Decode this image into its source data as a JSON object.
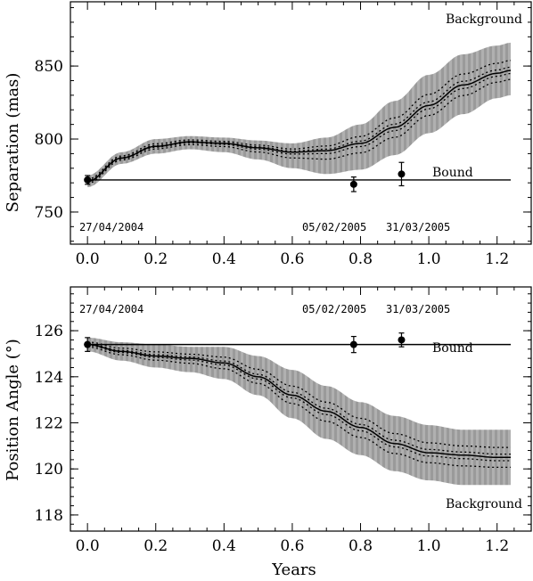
{
  "chart_data": [
    {
      "type": "line",
      "panel": "top",
      "ylabel": "Separation (mas)",
      "xlabel": "",
      "xlim": [
        -0.05,
        1.3
      ],
      "ylim": [
        728,
        894
      ],
      "xticks": [
        0.0,
        0.2,
        0.4,
        0.6,
        0.8,
        1.0,
        1.2
      ],
      "xtick_labels": [
        "0.0",
        "0.2",
        "0.4",
        "0.6",
        "0.8",
        "1.0",
        "1.2"
      ],
      "yticks": [
        750,
        800,
        850
      ],
      "ytick_labels": [
        "750",
        "800",
        "850"
      ],
      "grid": false,
      "background_track": {
        "x": [
          0.0,
          0.1,
          0.2,
          0.3,
          0.4,
          0.5,
          0.6,
          0.7,
          0.8,
          0.9,
          1.0,
          1.1,
          1.2,
          1.24
        ],
        "y": [
          771,
          787,
          795,
          798,
          797,
          794,
          791,
          792,
          797,
          808,
          823,
          837,
          845,
          847
        ],
        "upper": [
          775,
          791,
          800,
          802,
          801,
          799,
          797,
          801,
          810,
          826,
          844,
          858,
          864,
          866
        ],
        "lower": [
          767,
          783,
          790,
          793,
          791,
          786,
          780,
          776,
          779,
          789,
          804,
          817,
          828,
          830
        ]
      },
      "bound_level": 772,
      "measurements": [
        {
          "x": 0.0,
          "y": 772,
          "err": 3
        },
        {
          "x": 0.78,
          "y": 769,
          "err": 5
        },
        {
          "x": 0.92,
          "y": 776,
          "err": 8
        }
      ],
      "annotations": {
        "background": "Background",
        "bound": "Bound",
        "dates": [
          "27/04/2004",
          "05/02/2005",
          "31/03/2005"
        ]
      }
    },
    {
      "type": "line",
      "panel": "bottom",
      "ylabel": "Position Angle (°)",
      "xlabel": "Years",
      "xlim": [
        -0.05,
        1.3
      ],
      "ylim": [
        117.3,
        127.9
      ],
      "xticks": [
        0.0,
        0.2,
        0.4,
        0.6,
        0.8,
        1.0,
        1.2
      ],
      "xtick_labels": [
        "0.0",
        "0.2",
        "0.4",
        "0.6",
        "0.8",
        "1.0",
        "1.2"
      ],
      "yticks": [
        118,
        120,
        122,
        124,
        126
      ],
      "ytick_labels": [
        "118",
        "120",
        "122",
        "124",
        "126"
      ],
      "grid": false,
      "background_track": {
        "x": [
          0.0,
          0.1,
          0.2,
          0.3,
          0.4,
          0.5,
          0.6,
          0.7,
          0.8,
          0.9,
          1.0,
          1.1,
          1.2,
          1.24
        ],
        "y": [
          125.4,
          125.1,
          124.9,
          124.8,
          124.6,
          124.0,
          123.2,
          122.5,
          121.8,
          121.1,
          120.7,
          120.6,
          120.5,
          120.5
        ],
        "upper": [
          125.7,
          125.5,
          125.4,
          125.3,
          125.3,
          124.9,
          124.3,
          123.6,
          122.9,
          122.3,
          121.9,
          121.7,
          121.7,
          121.7
        ],
        "lower": [
          125.1,
          124.7,
          124.4,
          124.2,
          123.9,
          123.2,
          122.2,
          121.3,
          120.6,
          119.9,
          119.5,
          119.3,
          119.3,
          119.3
        ]
      },
      "bound_level": 125.4,
      "measurements": [
        {
          "x": 0.0,
          "y": 125.4,
          "err": 0.3
        },
        {
          "x": 0.78,
          "y": 125.4,
          "err": 0.35
        },
        {
          "x": 0.92,
          "y": 125.6,
          "err": 0.3
        }
      ],
      "annotations": {
        "background": "Background",
        "bound": "Bound",
        "dates": [
          "27/04/2004",
          "05/02/2005",
          "31/03/2005"
        ]
      }
    }
  ]
}
